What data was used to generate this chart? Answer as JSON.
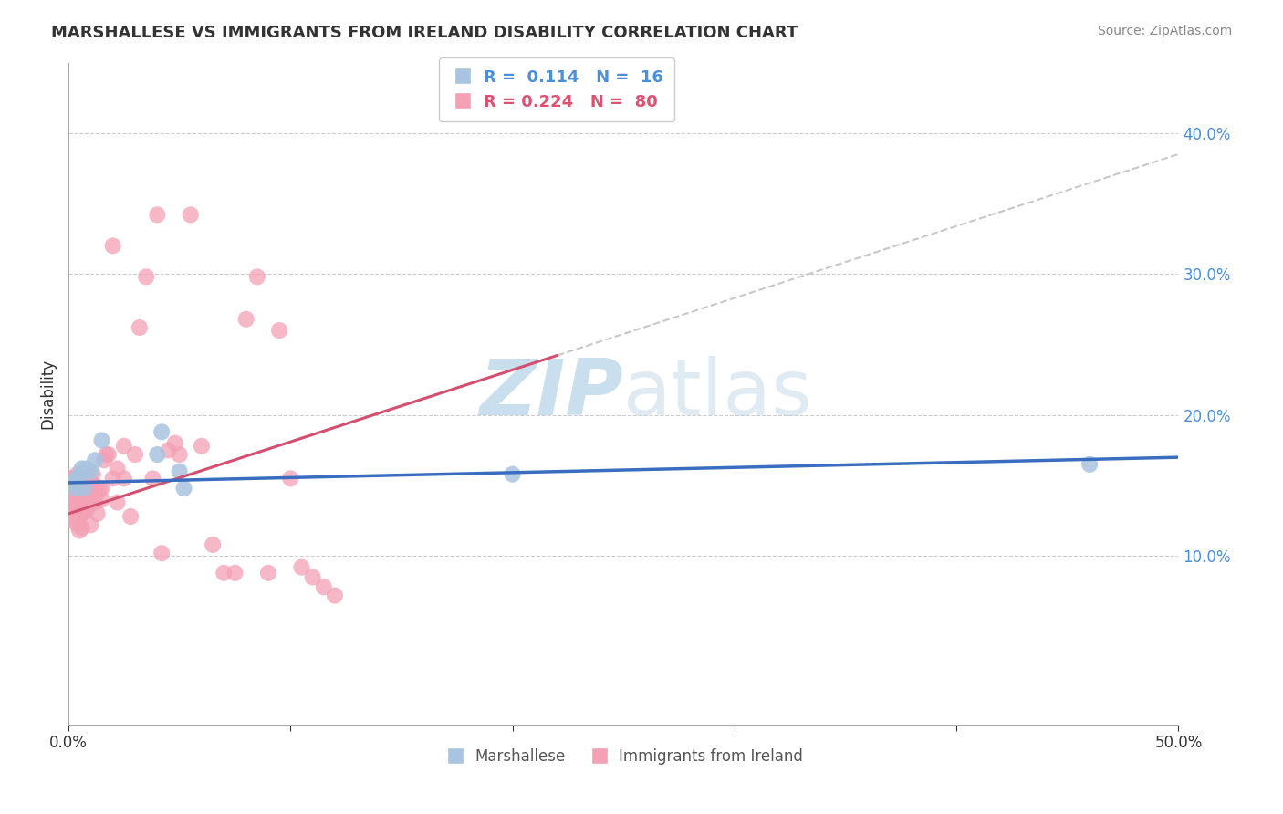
{
  "title": "MARSHALLESE VS IMMIGRANTS FROM IRELAND DISABILITY CORRELATION CHART",
  "source": "Source: ZipAtlas.com",
  "ylabel": "Disability",
  "xlim": [
    0.0,
    0.5
  ],
  "ylim": [
    -0.02,
    0.45
  ],
  "yticks_right": [
    0.1,
    0.2,
    0.3,
    0.4
  ],
  "ytick_right_labels": [
    "10.0%",
    "20.0%",
    "30.0%",
    "40.0%"
  ],
  "marshallese_color": "#a8c4e0",
  "ireland_color": "#f4a0b5",
  "trend_blue_color": "#3a6dbf",
  "trend_pink_color": "#d45070",
  "trend_gray_color": "#bbbbbb",
  "background": "#ffffff",
  "watermark_zip": "ZIP",
  "watermark_atlas": "atlas",
  "marshallese_x": [
    0.002,
    0.003,
    0.004,
    0.005,
    0.006,
    0.007,
    0.008,
    0.01,
    0.012,
    0.015,
    0.04,
    0.042,
    0.05,
    0.052,
    0.2,
    0.46
  ],
  "marshallese_y": [
    0.152,
    0.148,
    0.155,
    0.158,
    0.162,
    0.148,
    0.162,
    0.16,
    0.168,
    0.182,
    0.172,
    0.188,
    0.16,
    0.148,
    0.158,
    0.165
  ],
  "ireland_x": [
    0.001,
    0.001,
    0.001,
    0.002,
    0.002,
    0.002,
    0.002,
    0.003,
    0.003,
    0.003,
    0.003,
    0.003,
    0.004,
    0.004,
    0.004,
    0.004,
    0.005,
    0.005,
    0.005,
    0.005,
    0.005,
    0.006,
    0.006,
    0.006,
    0.006,
    0.007,
    0.007,
    0.007,
    0.007,
    0.008,
    0.008,
    0.008,
    0.009,
    0.009,
    0.009,
    0.01,
    0.01,
    0.01,
    0.011,
    0.011,
    0.012,
    0.012,
    0.013,
    0.013,
    0.014,
    0.015,
    0.015,
    0.016,
    0.017,
    0.018,
    0.02,
    0.02,
    0.022,
    0.022,
    0.025,
    0.025,
    0.028,
    0.03,
    0.032,
    0.035,
    0.038,
    0.04,
    0.042,
    0.045,
    0.048,
    0.05,
    0.055,
    0.06,
    0.065,
    0.07,
    0.075,
    0.08,
    0.085,
    0.09,
    0.095,
    0.1,
    0.105,
    0.11,
    0.115,
    0.12
  ],
  "ireland_y": [
    0.15,
    0.155,
    0.145,
    0.138,
    0.148,
    0.155,
    0.13,
    0.132,
    0.142,
    0.148,
    0.155,
    0.125,
    0.138,
    0.148,
    0.158,
    0.122,
    0.135,
    0.148,
    0.152,
    0.128,
    0.118,
    0.145,
    0.152,
    0.13,
    0.12,
    0.148,
    0.155,
    0.142,
    0.132,
    0.15,
    0.142,
    0.132,
    0.145,
    0.155,
    0.135,
    0.152,
    0.142,
    0.122,
    0.148,
    0.158,
    0.15,
    0.138,
    0.145,
    0.13,
    0.148,
    0.14,
    0.148,
    0.168,
    0.172,
    0.172,
    0.155,
    0.32,
    0.162,
    0.138,
    0.178,
    0.155,
    0.128,
    0.172,
    0.262,
    0.298,
    0.155,
    0.342,
    0.102,
    0.175,
    0.18,
    0.172,
    0.342,
    0.178,
    0.108,
    0.088,
    0.088,
    0.268,
    0.298,
    0.088,
    0.26,
    0.155,
    0.092,
    0.085,
    0.078,
    0.072
  ],
  "ireland_trend_x0": 0.0,
  "ireland_trend_x1": 0.5,
  "ireland_trend_y0": 0.13,
  "ireland_trend_y1": 0.385,
  "marsh_trend_x0": 0.0,
  "marsh_trend_x1": 0.5,
  "marsh_trend_y0": 0.152,
  "marsh_trend_y1": 0.17
}
